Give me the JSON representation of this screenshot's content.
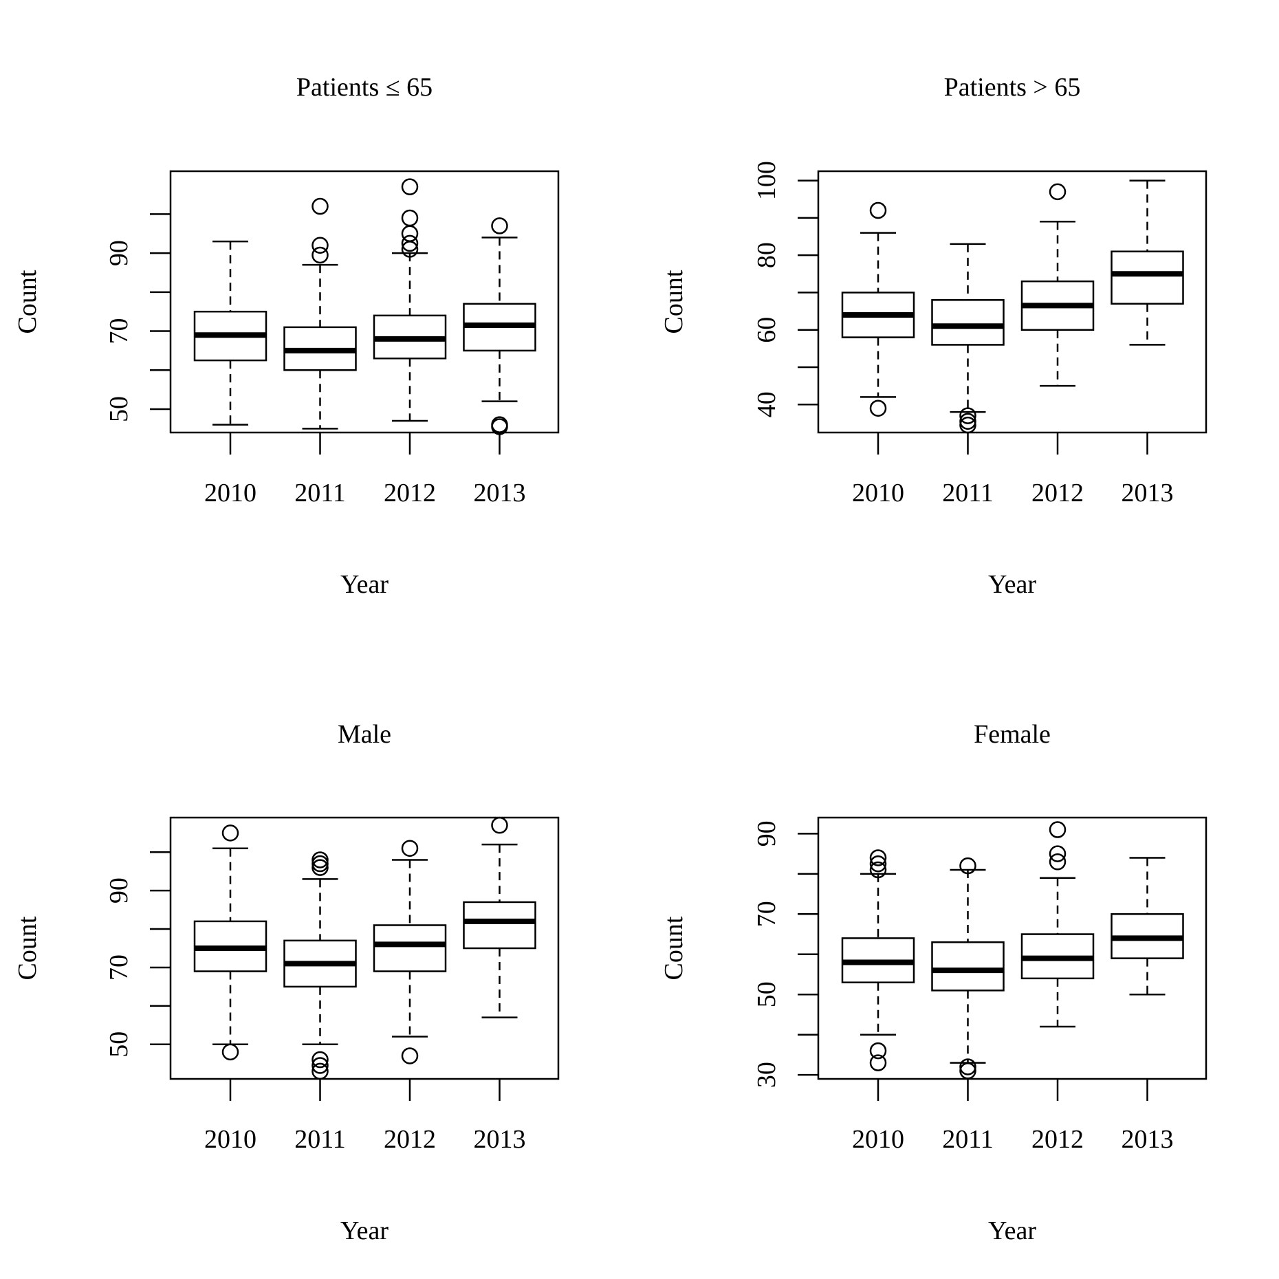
{
  "chart_data": [
    {
      "type": "boxplot",
      "title": "Patients ≤ 65",
      "xlabel": "Year",
      "ylabel": "Count",
      "ylim": [
        44,
        111
      ],
      "yticks": [
        50,
        60,
        70,
        80,
        90,
        100
      ],
      "ytick_labels": [
        "50",
        "",
        "70",
        "",
        "90",
        ""
      ],
      "categories": [
        "2010",
        "2011",
        "2012",
        "2013"
      ],
      "boxes": [
        {
          "low": 46,
          "q1": 62.5,
          "median": 69,
          "q3": 75,
          "high": 93,
          "outliers": []
        },
        {
          "low": 45,
          "q1": 60,
          "median": 65,
          "q3": 71,
          "high": 87,
          "outliers": [
            89.5,
            92,
            102
          ]
        },
        {
          "low": 47,
          "q1": 63,
          "median": 68,
          "q3": 74,
          "high": 90,
          "outliers": [
            91,
            92.5,
            95,
            99,
            107
          ]
        },
        {
          "low": 52,
          "q1": 65,
          "median": 71.5,
          "q3": 77,
          "high": 94,
          "outliers": [
            45.5,
            46,
            97
          ]
        }
      ]
    },
    {
      "type": "boxplot",
      "title": "Patients > 65",
      "xlabel": "Year",
      "ylabel": "Count",
      "ylim": [
        32.5,
        102.5
      ],
      "yticks": [
        40,
        50,
        60,
        70,
        80,
        90,
        100
      ],
      "ytick_labels": [
        "40",
        "",
        "60",
        "",
        "80",
        "",
        "100"
      ],
      "categories": [
        "2010",
        "2011",
        "2012",
        "2013"
      ],
      "boxes": [
        {
          "low": 42,
          "q1": 58,
          "median": 64,
          "q3": 70,
          "high": 86,
          "outliers": [
            39,
            92
          ]
        },
        {
          "low": 38,
          "q1": 56,
          "median": 61,
          "q3": 68,
          "high": 83,
          "outliers": [
            34.5,
            35.5,
            37
          ]
        },
        {
          "low": 45,
          "q1": 60,
          "median": 66.5,
          "q3": 73,
          "high": 89,
          "outliers": [
            97
          ]
        },
        {
          "low": 56,
          "q1": 67,
          "median": 75,
          "q3": 81,
          "high": 100,
          "outliers": []
        }
      ]
    },
    {
      "type": "boxplot",
      "title": "Male",
      "xlabel": "Year",
      "ylabel": "Count",
      "ylim": [
        41,
        109
      ],
      "yticks": [
        50,
        60,
        70,
        80,
        90,
        100
      ],
      "ytick_labels": [
        "50",
        "",
        "70",
        "",
        "90",
        ""
      ],
      "categories": [
        "2010",
        "2011",
        "2012",
        "2013"
      ],
      "boxes": [
        {
          "low": 50,
          "q1": 69,
          "median": 75,
          "q3": 82,
          "high": 101,
          "outliers": [
            48,
            105
          ]
        },
        {
          "low": 50,
          "q1": 65,
          "median": 71,
          "q3": 77,
          "high": 93,
          "outliers": [
            43,
            44.5,
            46,
            96,
            97,
            98
          ]
        },
        {
          "low": 52,
          "q1": 69,
          "median": 76,
          "q3": 81,
          "high": 98,
          "outliers": [
            47,
            101
          ]
        },
        {
          "low": 57,
          "q1": 75,
          "median": 82,
          "q3": 87,
          "high": 102,
          "outliers": [
            107
          ]
        }
      ]
    },
    {
      "type": "boxplot",
      "title": "Female",
      "xlabel": "Year",
      "ylabel": "Count",
      "ylim": [
        29,
        94
      ],
      "yticks": [
        30,
        40,
        50,
        60,
        70,
        80,
        90
      ],
      "ytick_labels": [
        "30",
        "",
        "50",
        "",
        "70",
        "",
        "90"
      ],
      "categories": [
        "2010",
        "2011",
        "2012",
        "2013"
      ],
      "boxes": [
        {
          "low": 40,
          "q1": 53,
          "median": 58,
          "q3": 64,
          "high": 80,
          "outliers": [
            33,
            36,
            81,
            82.5,
            84
          ]
        },
        {
          "low": 33,
          "q1": 51,
          "median": 56,
          "q3": 63,
          "high": 81,
          "outliers": [
            31,
            32,
            82
          ]
        },
        {
          "low": 42,
          "q1": 54,
          "median": 59,
          "q3": 65,
          "high": 79,
          "outliers": [
            83,
            85,
            91
          ]
        },
        {
          "low": 50,
          "q1": 59,
          "median": 64,
          "q3": 70,
          "high": 84,
          "outliers": []
        }
      ]
    }
  ]
}
